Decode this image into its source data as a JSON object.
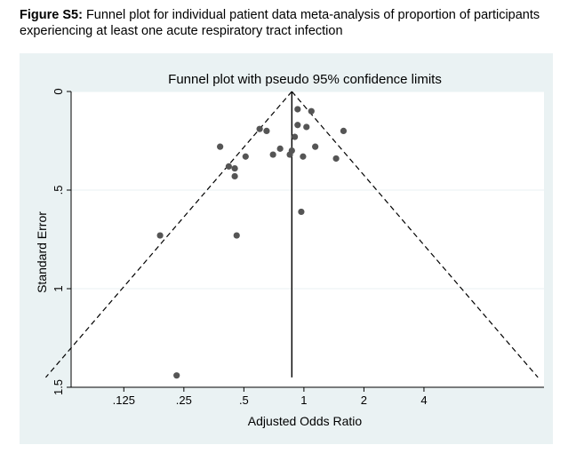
{
  "figure": {
    "label": "Figure S5:",
    "caption": "Funnel plot for individual patient data meta-analysis of proportion of participants experiencing at least one acute respiratory tract infection"
  },
  "colors": {
    "panel_bg": "#eaf2f3",
    "plot_bg": "#ffffff",
    "point": "#555555",
    "line": "#000000"
  },
  "chart_data": {
    "type": "scatter",
    "title": "Funnel plot with pseudo 95% confidence limits",
    "xlabel": "Adjusted Odds Ratio",
    "ylabel": "Standard Error",
    "x_scale": "log2",
    "x_ticks": [
      {
        "value": 0.125,
        "label": ".125"
      },
      {
        "value": 0.25,
        "label": ".25"
      },
      {
        "value": 0.5,
        "label": ".5"
      },
      {
        "value": 1,
        "label": "1"
      },
      {
        "value": 2,
        "label": "2"
      },
      {
        "value": 4,
        "label": "4"
      }
    ],
    "y_ticks": [
      {
        "value": 0,
        "label": "0"
      },
      {
        "value": 0.5,
        "label": ".5"
      },
      {
        "value": 1,
        "label": "1"
      },
      {
        "value": 1.5,
        "label": "1.5"
      }
    ],
    "y_inverted": true,
    "xlim": [
      0.068,
      16
    ],
    "ylim": [
      0,
      1.5
    ],
    "pooled_estimate": 0.87,
    "confidence_level": 0.95,
    "points": [
      {
        "or": 0.93,
        "se": 0.09
      },
      {
        "or": 1.09,
        "se": 0.1
      },
      {
        "or": 0.93,
        "se": 0.17
      },
      {
        "or": 1.03,
        "se": 0.18
      },
      {
        "or": 0.6,
        "se": 0.19
      },
      {
        "or": 0.65,
        "se": 0.2
      },
      {
        "or": 1.58,
        "se": 0.2
      },
      {
        "or": 0.9,
        "se": 0.23
      },
      {
        "or": 0.38,
        "se": 0.28
      },
      {
        "or": 1.14,
        "se": 0.28
      },
      {
        "or": 0.76,
        "se": 0.29
      },
      {
        "or": 0.87,
        "se": 0.3
      },
      {
        "or": 0.7,
        "se": 0.32
      },
      {
        "or": 0.85,
        "se": 0.32
      },
      {
        "or": 0.99,
        "se": 0.33
      },
      {
        "or": 0.51,
        "se": 0.33
      },
      {
        "or": 1.45,
        "se": 0.34
      },
      {
        "or": 0.42,
        "se": 0.38
      },
      {
        "or": 0.45,
        "se": 0.39
      },
      {
        "or": 0.45,
        "se": 0.43
      },
      {
        "or": 0.97,
        "se": 0.61
      },
      {
        "or": 0.19,
        "se": 0.73
      },
      {
        "or": 0.46,
        "se": 0.73
      },
      {
        "or": 0.23,
        "se": 1.44
      }
    ]
  }
}
